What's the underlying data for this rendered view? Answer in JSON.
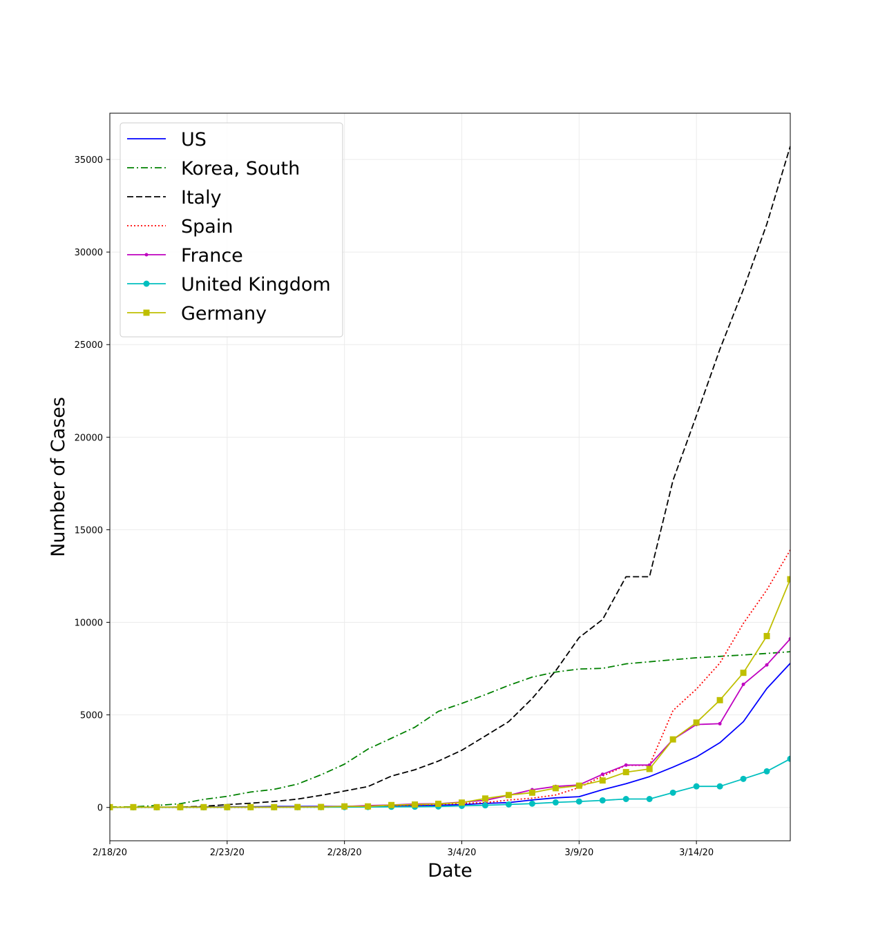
{
  "chart_data": {
    "type": "line",
    "title": "",
    "xlabel": "Date",
    "ylabel": "Number of Cases",
    "x": [
      "2/18/20",
      "2/19/20",
      "2/20/20",
      "2/21/20",
      "2/22/20",
      "2/23/20",
      "2/24/20",
      "2/25/20",
      "2/26/20",
      "2/27/20",
      "2/28/20",
      "2/29/20",
      "3/1/20",
      "3/2/20",
      "3/3/20",
      "3/4/20",
      "3/5/20",
      "3/6/20",
      "3/7/20",
      "3/8/20",
      "3/9/20",
      "3/10/20",
      "3/11/20",
      "3/12/20",
      "3/13/20",
      "3/14/20",
      "3/15/20",
      "3/16/20",
      "3/17/20",
      "3/18/20"
    ],
    "xticks": [
      "2/18/20",
      "2/23/20",
      "2/28/20",
      "3/4/20",
      "3/9/20",
      "3/14/20"
    ],
    "yticks": [
      0,
      5000,
      10000,
      15000,
      20000,
      25000,
      30000,
      35000
    ],
    "ylim": [
      -1800,
      37500
    ],
    "grid": true,
    "legend_position": "upper-left",
    "series": [
      {
        "name": "US",
        "color": "#0000ff",
        "dash": "solid",
        "marker": "none",
        "values": [
          13,
          13,
          15,
          15,
          35,
          35,
          35,
          53,
          53,
          59,
          60,
          68,
          74,
          98,
          118,
          149,
          217,
          262,
          402,
          518,
          583,
          959,
          1281,
          1663,
          2179,
          2727,
          3499,
          4632,
          6421,
          7786
        ]
      },
      {
        "name": "Korea, South",
        "color": "#008000",
        "dash": "dashdot",
        "marker": "none",
        "values": [
          31,
          31,
          104,
          204,
          433,
          602,
          833,
          977,
          1261,
          1766,
          2337,
          3150,
          3736,
          4335,
          5186,
          5621,
          6088,
          6593,
          7041,
          7314,
          7478,
          7513,
          7755,
          7869,
          7979,
          8086,
          8162,
          8236,
          8320,
          8413
        ]
      },
      {
        "name": "Italy",
        "color": "#000000",
        "dash": "dashed",
        "marker": "none",
        "values": [
          3,
          3,
          3,
          20,
          62,
          155,
          229,
          322,
          453,
          655,
          888,
          1128,
          1694,
          2036,
          2502,
          3089,
          3858,
          4636,
          5883,
          7375,
          9172,
          10149,
          12462,
          12462,
          17660,
          21157,
          24747,
          27980,
          31506,
          35713
        ]
      },
      {
        "name": "Spain",
        "color": "#ff0000",
        "dash": "dotted",
        "marker": "none",
        "values": [
          2,
          2,
          2,
          2,
          2,
          2,
          2,
          6,
          13,
          15,
          32,
          45,
          84,
          120,
          165,
          222,
          259,
          400,
          500,
          673,
          1073,
          1695,
          2277,
          2277,
          5232,
          6391,
          7798,
          9942,
          11748,
          13910
        ]
      },
      {
        "name": "France",
        "color": "#bf00bf",
        "dash": "solid",
        "marker": "point",
        "values": [
          12,
          12,
          12,
          12,
          12,
          12,
          12,
          14,
          18,
          38,
          57,
          100,
          130,
          191,
          204,
          288,
          380,
          656,
          957,
          1134,
          1217,
          1792,
          2289,
          2289,
          3672,
          4480,
          4523,
          6650,
          7699,
          9105
        ]
      },
      {
        "name": "United Kingdom",
        "color": "#00bfbf",
        "dash": "solid",
        "marker": "circle",
        "values": [
          9,
          9,
          9,
          9,
          9,
          9,
          13,
          13,
          13,
          15,
          20,
          23,
          36,
          40,
          51,
          85,
          115,
          163,
          206,
          273,
          321,
          382,
          456,
          456,
          798,
          1140,
          1140,
          1543,
          1950,
          2626
        ]
      },
      {
        "name": "Germany",
        "color": "#bfbf00",
        "dash": "solid",
        "marker": "square",
        "values": [
          16,
          16,
          16,
          16,
          16,
          16,
          16,
          16,
          21,
          26,
          57,
          57,
          129,
          157,
          196,
          262,
          482,
          670,
          799,
          1040,
          1176,
          1457,
          1908,
          2078,
          3675,
          4585,
          5795,
          7272,
          9257,
          12327
        ]
      }
    ]
  }
}
